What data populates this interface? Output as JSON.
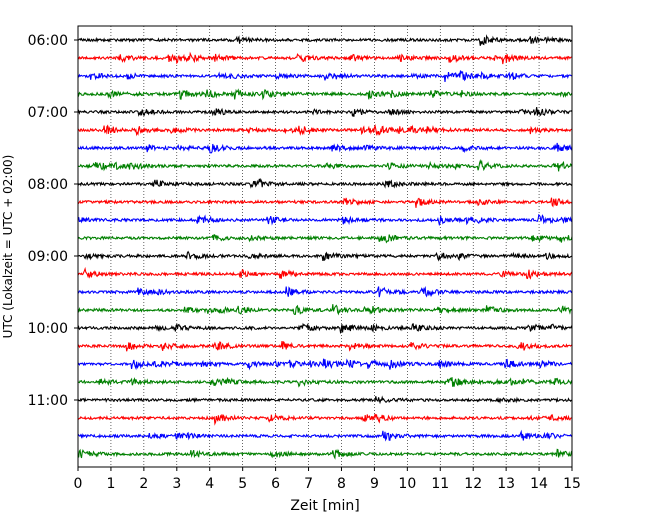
{
  "chart_data": {
    "type": "line",
    "title": "",
    "xlabel": "Zeit  [min]",
    "ylabel": "UTC (Lokalzeit = UTC + 02:00)",
    "xlim": [
      0,
      15
    ],
    "x_ticks": [
      "0",
      "1",
      "2",
      "3",
      "4",
      "5",
      "6",
      "7",
      "8",
      "9",
      "10",
      "11",
      "12",
      "13",
      "14",
      "15"
    ],
    "y_ticks": [
      "06:00",
      "07:00",
      "08:00",
      "09:00",
      "10:00",
      "11:00"
    ],
    "grid": "vertical dotted",
    "trace_interval_min": 15,
    "trace_colors": [
      "#000000",
      "#ff0000",
      "#0000ff",
      "#008000"
    ],
    "traces": [
      {
        "start": "06:00",
        "color": "#000000"
      },
      {
        "start": "06:15",
        "color": "#ff0000"
      },
      {
        "start": "06:30",
        "color": "#0000ff"
      },
      {
        "start": "06:45",
        "color": "#008000"
      },
      {
        "start": "07:00",
        "color": "#000000"
      },
      {
        "start": "07:15",
        "color": "#ff0000"
      },
      {
        "start": "07:30",
        "color": "#0000ff"
      },
      {
        "start": "07:45",
        "color": "#008000"
      },
      {
        "start": "08:00",
        "color": "#000000"
      },
      {
        "start": "08:15",
        "color": "#ff0000"
      },
      {
        "start": "08:30",
        "color": "#0000ff"
      },
      {
        "start": "08:45",
        "color": "#008000"
      },
      {
        "start": "09:00",
        "color": "#000000"
      },
      {
        "start": "09:15",
        "color": "#ff0000"
      },
      {
        "start": "09:30",
        "color": "#0000ff"
      },
      {
        "start": "09:45",
        "color": "#008000"
      },
      {
        "start": "10:00",
        "color": "#000000"
      },
      {
        "start": "10:15",
        "color": "#ff0000"
      },
      {
        "start": "10:30",
        "color": "#0000ff"
      },
      {
        "start": "10:45",
        "color": "#008000"
      },
      {
        "start": "11:00",
        "color": "#000000"
      },
      {
        "start": "11:15",
        "color": "#ff0000"
      },
      {
        "start": "11:30",
        "color": "#0000ff"
      },
      {
        "start": "11:45",
        "color": "#008000"
      }
    ]
  }
}
